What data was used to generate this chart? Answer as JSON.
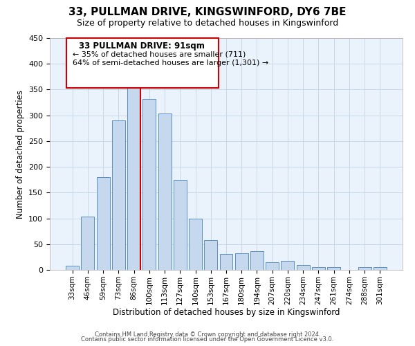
{
  "title": "33, PULLMAN DRIVE, KINGSWINFORD, DY6 7BE",
  "subtitle": "Size of property relative to detached houses in Kingswinford",
  "xlabel": "Distribution of detached houses by size in Kingswinford",
  "ylabel": "Number of detached properties",
  "categories": [
    "33sqm",
    "46sqm",
    "59sqm",
    "73sqm",
    "86sqm",
    "100sqm",
    "113sqm",
    "127sqm",
    "140sqm",
    "153sqm",
    "167sqm",
    "180sqm",
    "194sqm",
    "207sqm",
    "220sqm",
    "234sqm",
    "247sqm",
    "261sqm",
    "274sqm",
    "288sqm",
    "301sqm"
  ],
  "values": [
    8,
    103,
    180,
    290,
    368,
    332,
    303,
    175,
    100,
    58,
    31,
    32,
    36,
    15,
    18,
    10,
    5,
    5,
    0,
    5,
    5
  ],
  "bar_color": "#c5d8ed",
  "bar_edge_color": "#5a8fc0",
  "reference_line_color": "#cc0000",
  "ylim": [
    0,
    450
  ],
  "yticks": [
    0,
    50,
    100,
    150,
    200,
    250,
    300,
    350,
    400,
    450
  ],
  "annotation_title": "33 PULLMAN DRIVE: 91sqm",
  "annotation_line1": "← 35% of detached houses are smaller (711)",
  "annotation_line2": "64% of semi-detached houses are larger (1,301) →",
  "annotation_box_color": "#ffffff",
  "annotation_box_edge": "#cc0000",
  "grid_color": "#c8d8e8",
  "background_color": "#eaf2fb",
  "footer_line1": "Contains HM Land Registry data © Crown copyright and database right 2024.",
  "footer_line2": "Contains public sector information licensed under the Open Government Licence v3.0."
}
